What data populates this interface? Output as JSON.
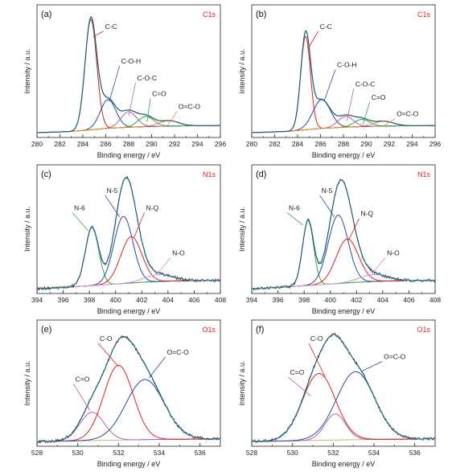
{
  "chart_data": [
    {
      "type": "line",
      "panel_label": "(a)",
      "title": "C1s",
      "xlabel": "Binding energy / eV",
      "ylabel": "Intensity / a.u.",
      "xlim": [
        280,
        296
      ],
      "xticks": [
        280,
        282,
        284,
        286,
        288,
        290,
        292,
        294,
        296
      ],
      "x_reversed": false,
      "grid": false,
      "baseline": {
        "x": [
          280,
          283,
          286,
          288,
          290,
          292,
          294,
          296
        ],
        "y": [
          0.0,
          0.01,
          0.035,
          0.045,
          0.052,
          0.056,
          0.058,
          0.06
        ]
      },
      "components": [
        {
          "name": "C-C",
          "color": "#b42a1e",
          "center": 284.7,
          "height": 0.92,
          "fwhm": 1.2
        },
        {
          "name": "C-O-H",
          "color": "#2a47a8",
          "center": 286.2,
          "height": 0.24,
          "fwhm": 1.6
        },
        {
          "name": "C-O-C",
          "color": "#b05fb0",
          "center": 288.0,
          "height": 0.13,
          "fwhm": 1.6
        },
        {
          "name": "C=O",
          "color": "#2aa84a",
          "center": 289.5,
          "height": 0.085,
          "fwhm": 1.6
        },
        {
          "name": "O=C-O",
          "color": "#f08a1c",
          "center": 291.5,
          "height": 0.045,
          "fwhm": 2.0
        }
      ],
      "envelope_color": "#3ab3d6",
      "annotations": [
        {
          "text": "C-C",
          "x": 285.8,
          "y": 0.86,
          "ax": 284.9,
          "ay": 0.8
        },
        {
          "text": "C-O-H",
          "x": 287.2,
          "y": 0.57,
          "ax": 286.3,
          "ay": 0.26
        },
        {
          "text": "C-O-C",
          "x": 288.6,
          "y": 0.43,
          "ax": 288.0,
          "ay": 0.14
        },
        {
          "text": "C=O",
          "x": 289.9,
          "y": 0.3,
          "ax": 289.6,
          "ay": 0.09
        },
        {
          "text": "O=C-O",
          "x": 292.2,
          "y": 0.19,
          "ax": 291.4,
          "ay": 0.06
        }
      ]
    },
    {
      "type": "line",
      "panel_label": "(b)",
      "title": "C1s",
      "xlabel": "Binding energy / eV",
      "ylabel": "Intensity / a.u.",
      "xlim": [
        280,
        296
      ],
      "xticks": [
        280,
        282,
        284,
        286,
        288,
        290,
        292,
        294,
        296
      ],
      "x_reversed": false,
      "grid": false,
      "baseline": {
        "x": [
          280,
          283,
          286,
          288,
          290,
          292,
          294,
          296
        ],
        "y": [
          0.0,
          0.01,
          0.035,
          0.045,
          0.052,
          0.056,
          0.058,
          0.06
        ]
      },
      "components": [
        {
          "name": "C-C",
          "color": "#e02020",
          "center": 284.7,
          "height": 0.78,
          "fwhm": 1.0
        },
        {
          "name": "C-O-H",
          "color": "#2a47a8",
          "center": 286.1,
          "height": 0.24,
          "fwhm": 1.8
        },
        {
          "name": "C-O-C",
          "color": "#b05fb0",
          "center": 288.2,
          "height": 0.09,
          "fwhm": 1.6
        },
        {
          "name": "C=O",
          "color": "#2aa84a",
          "center": 289.6,
          "height": 0.06,
          "fwhm": 1.6
        },
        {
          "name": "O=C-O",
          "color": "#f08a1c",
          "center": 291.5,
          "height": 0.04,
          "fwhm": 2.0
        }
      ],
      "envelope_color": "#3ab3d6",
      "annotations": [
        {
          "text": "C-C",
          "x": 285.8,
          "y": 0.86,
          "ax": 284.9,
          "ay": 0.7
        },
        {
          "text": "C-O-H",
          "x": 287.3,
          "y": 0.54,
          "ax": 286.3,
          "ay": 0.26
        },
        {
          "text": "C-O-C",
          "x": 288.9,
          "y": 0.38,
          "ax": 288.3,
          "ay": 0.1
        },
        {
          "text": "C=O",
          "x": 290.3,
          "y": 0.27,
          "ax": 289.7,
          "ay": 0.07
        },
        {
          "text": "O=C-O",
          "x": 292.5,
          "y": 0.13,
          "ax": 291.4,
          "ay": 0.05
        }
      ]
    },
    {
      "type": "line",
      "panel_label": "(c)",
      "title": "N1s",
      "xlabel": "Binding energy / eV",
      "ylabel": "Intensity / a.u.",
      "xlim": [
        394,
        408
      ],
      "xticks": [
        394,
        396,
        398,
        400,
        402,
        404,
        406,
        408
      ],
      "x_reversed": false,
      "grid": false,
      "baseline": {
        "x": [
          394,
          396,
          398,
          400,
          402,
          404,
          406,
          408
        ],
        "y": [
          0.0,
          0.01,
          0.025,
          0.04,
          0.055,
          0.065,
          0.07,
          0.07
        ]
      },
      "components": [
        {
          "name": "N-6",
          "color": "#2aa84a",
          "center": 398.2,
          "height": 0.5,
          "fwhm": 1.2
        },
        {
          "name": "N-5",
          "color": "#2a47a8",
          "center": 400.6,
          "height": 0.58,
          "fwhm": 1.7
        },
        {
          "name": "N-Q",
          "color": "#e02020",
          "center": 401.2,
          "height": 0.4,
          "fwhm": 1.9
        },
        {
          "name": "N-O",
          "color": "#d98fd0",
          "center": 403.3,
          "height": 0.06,
          "fwhm": 2.5
        }
      ],
      "envelope_color": "#3ab3d6",
      "annotations": [
        {
          "text": "N-6",
          "x": 396.7,
          "y": 0.67,
          "ax": 397.9,
          "ay": 0.5
        },
        {
          "text": "N-5",
          "x": 399.2,
          "y": 0.82,
          "ax": 400.3,
          "ay": 0.62
        },
        {
          "text": "N-Q",
          "x": 402.2,
          "y": 0.67,
          "ax": 401.4,
          "ay": 0.44
        },
        {
          "text": "N-O",
          "x": 404.2,
          "y": 0.28,
          "ax": 403.1,
          "ay": 0.12
        }
      ]
    },
    {
      "type": "line",
      "panel_label": "(d)",
      "title": "N1s",
      "xlabel": "Binding energy / eV",
      "ylabel": "Intensity / a.u.",
      "xlim": [
        394,
        408
      ],
      "xticks": [
        394,
        396,
        398,
        400,
        402,
        404,
        406,
        408
      ],
      "x_reversed": false,
      "grid": false,
      "baseline": {
        "x": [
          394,
          396,
          398,
          400,
          402,
          404,
          406,
          408
        ],
        "y": [
          0.0,
          0.01,
          0.025,
          0.04,
          0.055,
          0.065,
          0.07,
          0.07
        ]
      },
      "components": [
        {
          "name": "N-6",
          "color": "#2aa84a",
          "center": 398.3,
          "height": 0.56,
          "fwhm": 1.0
        },
        {
          "name": "N-5",
          "color": "#2a47a8",
          "center": 400.6,
          "height": 0.59,
          "fwhm": 1.8
        },
        {
          "name": "N-Q",
          "color": "#e02020",
          "center": 401.3,
          "height": 0.38,
          "fwhm": 2.0
        },
        {
          "name": "N-O",
          "color": "#d98fd0",
          "center": 403.3,
          "height": 0.06,
          "fwhm": 2.5
        }
      ],
      "envelope_color": "#3ab3d6",
      "annotations": [
        {
          "text": "N-6",
          "x": 396.7,
          "y": 0.67,
          "ax": 397.9,
          "ay": 0.55
        },
        {
          "text": "N-5",
          "x": 399.2,
          "y": 0.82,
          "ax": 400.3,
          "ay": 0.62
        },
        {
          "text": "N-Q",
          "x": 402.2,
          "y": 0.62,
          "ax": 401.4,
          "ay": 0.42
        },
        {
          "text": "N-O",
          "x": 404.2,
          "y": 0.28,
          "ax": 403.1,
          "ay": 0.12
        }
      ]
    },
    {
      "type": "line",
      "panel_label": "(e)",
      "title": "O1s",
      "xlabel": "Binding energy / eV",
      "ylabel": "Intensity / a.u.",
      "xlim": [
        528,
        537
      ],
      "xticks": [
        528,
        530,
        532,
        534,
        536
      ],
      "x_reversed": false,
      "grid": false,
      "baseline": {
        "x": [
          528,
          530,
          532,
          534,
          537
        ],
        "y": [
          0.0,
          0.005,
          0.012,
          0.018,
          0.022
        ]
      },
      "components": [
        {
          "name": "C=O",
          "color": "#b05fb0",
          "center": 530.7,
          "height": 0.25,
          "fwhm": 1.4
        },
        {
          "name": "C-O",
          "color": "#e02020",
          "center": 532.0,
          "height": 0.66,
          "fwhm": 1.7
        },
        {
          "name": "O=C-O",
          "color": "#2a47a8",
          "center": 533.3,
          "height": 0.53,
          "fwhm": 2.2
        }
      ],
      "envelope_color": "#3ab3d6",
      "annotations": [
        {
          "text": "C=O",
          "x": 529.8,
          "y": 0.52,
          "ax": 530.6,
          "ay": 0.27
        },
        {
          "text": "C-O",
          "x": 531.0,
          "y": 0.88,
          "ax": 532.0,
          "ay": 0.66
        },
        {
          "text": "O=C-O",
          "x": 534.3,
          "y": 0.76,
          "ax": 533.5,
          "ay": 0.56
        }
      ]
    },
    {
      "type": "line",
      "panel_label": "(f)",
      "title": "O1s",
      "xlabel": "Binding energy / eV",
      "ylabel": "Intensity / a.u.",
      "xlim": [
        528,
        537
      ],
      "xticks": [
        528,
        530,
        532,
        534,
        536
      ],
      "x_reversed": false,
      "grid": false,
      "baseline": {
        "x": [
          528,
          530,
          532,
          534,
          537
        ],
        "y": [
          0.0,
          0.005,
          0.012,
          0.018,
          0.022
        ]
      },
      "components": [
        {
          "name": "C=O",
          "color": "#b05fb0",
          "center": 532.1,
          "height": 0.23,
          "fwhm": 1.2
        },
        {
          "name": "C-O",
          "color": "#e02020",
          "center": 531.3,
          "height": 0.59,
          "fwhm": 1.9
        },
        {
          "name": "O=C-O",
          "color": "#2a47a8",
          "center": 533.1,
          "height": 0.6,
          "fwhm": 2.2
        }
      ],
      "envelope_color": "#3ab3d6",
      "annotations": [
        {
          "text": "C=O",
          "x": 529.8,
          "y": 0.58,
          "ax": 530.9,
          "ay": 0.4
        },
        {
          "text": "C-O",
          "x": 530.8,
          "y": 0.88,
          "ax": 531.6,
          "ay": 0.57
        },
        {
          "text": "O=C-O",
          "x": 534.4,
          "y": 0.72,
          "ax": 533.4,
          "ay": 0.62
        }
      ]
    }
  ]
}
